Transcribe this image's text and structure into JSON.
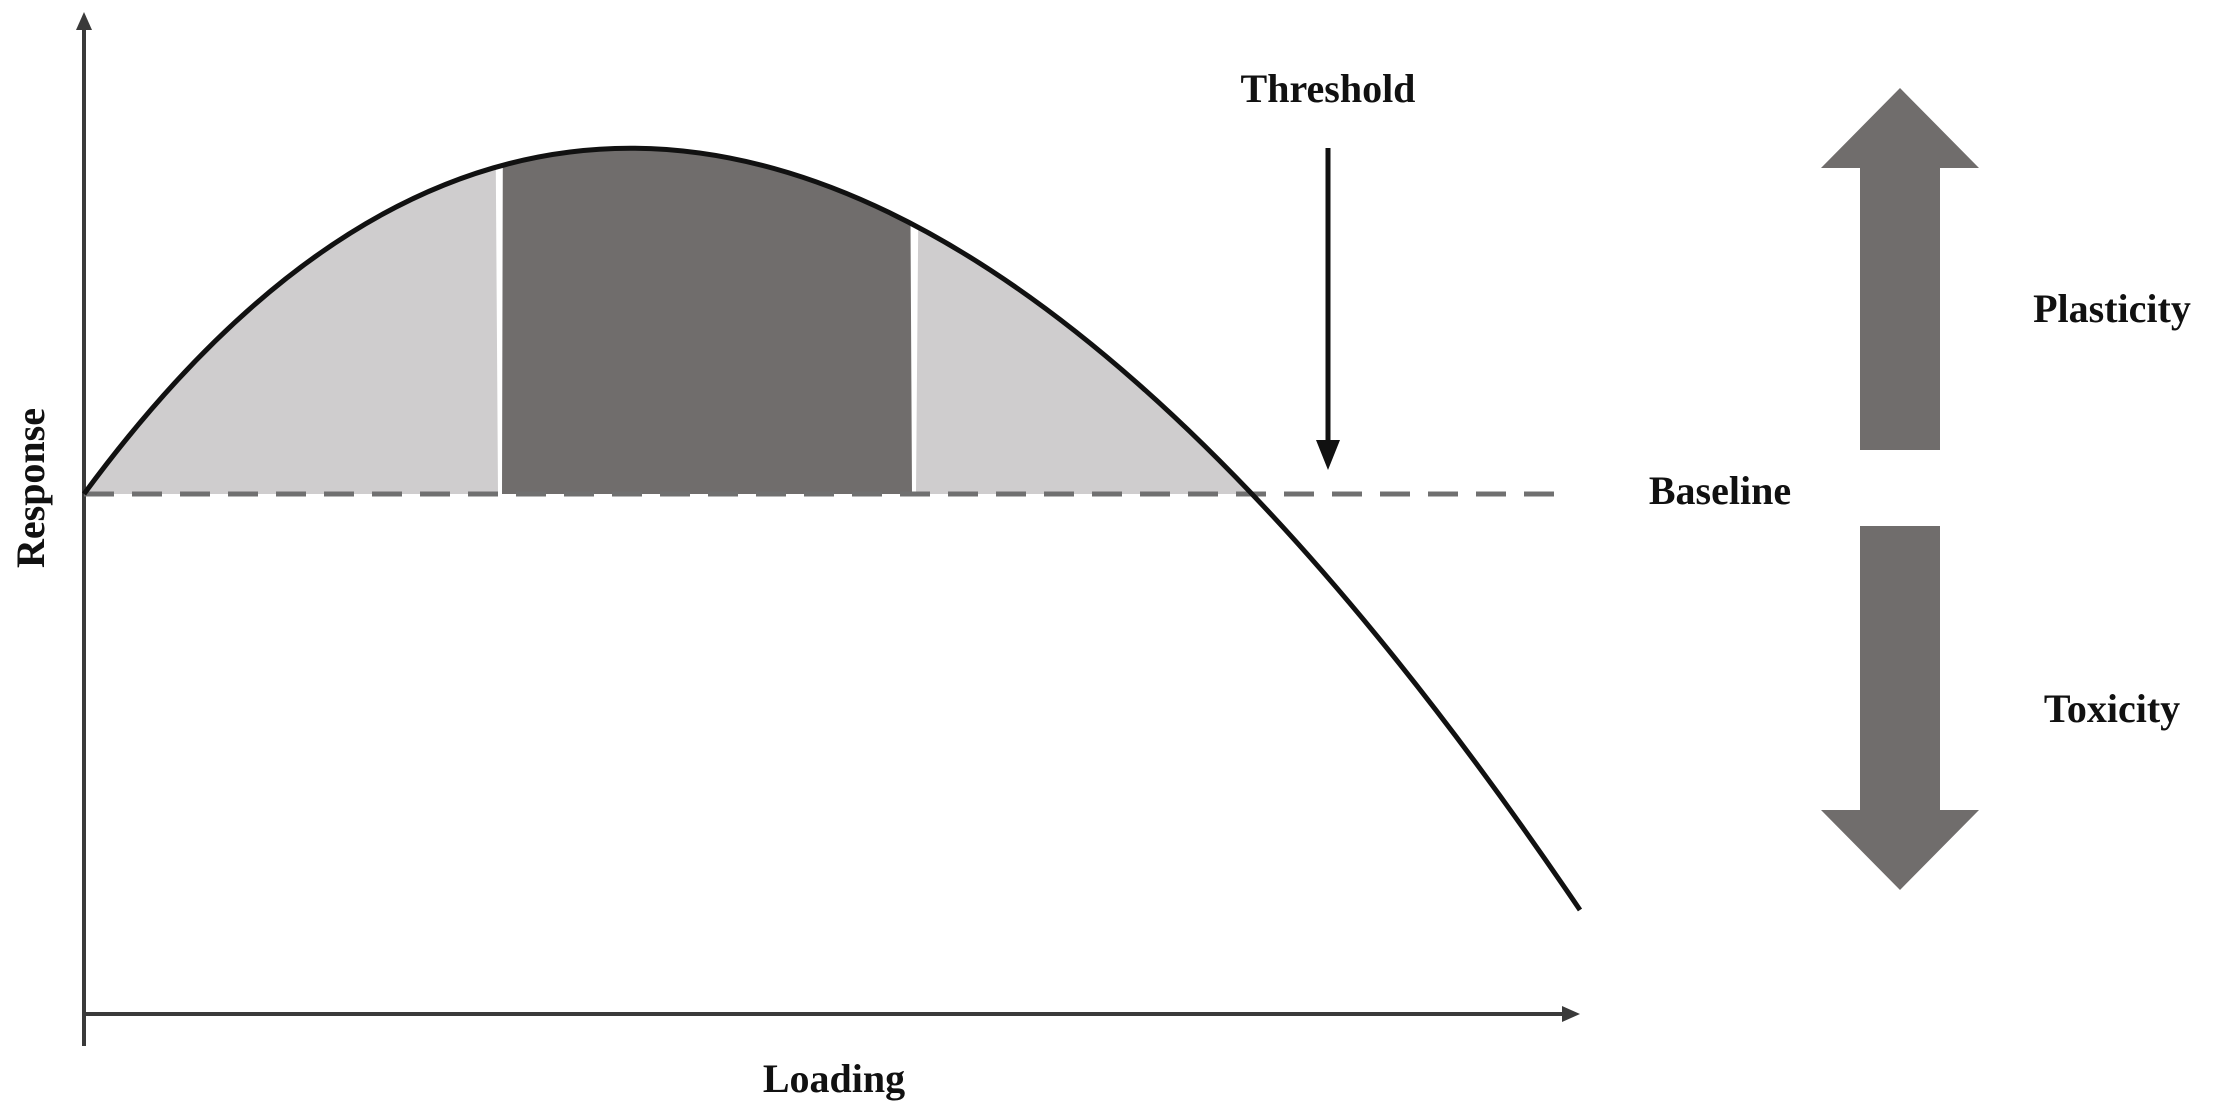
{
  "labels": {
    "y_axis": "Response",
    "x_axis": "Loading",
    "threshold": "Threshold",
    "baseline": "Baseline",
    "plasticity": "Plasticity",
    "toxicity": "Toxicity"
  },
  "colors": {
    "curve": "#111111",
    "axis": "#3a3a3a",
    "baseline_dash": "#707070",
    "zone_light": "#cfcdce",
    "zone_dark": "#706d6c",
    "arrow_fill": "#706d6c",
    "threshold_arrow": "#111111"
  }
}
